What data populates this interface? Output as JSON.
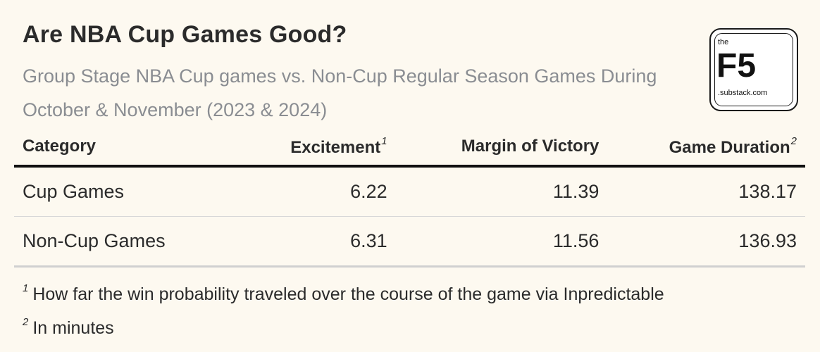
{
  "title": "Are NBA Cup Games Good?",
  "subtitle": "Group Stage NBA Cup games vs. Non-Cup Regular Season Games During October & November (2023 & 2024)",
  "logo": {
    "top": "the",
    "main": "F5",
    "bottom": ".substack.com"
  },
  "chart_data": {
    "type": "table",
    "columns": [
      {
        "label": "Category",
        "note": ""
      },
      {
        "label": "Excitement",
        "note": "1"
      },
      {
        "label": "Margin of Victory",
        "note": ""
      },
      {
        "label": "Game Duration",
        "note": "2"
      }
    ],
    "rows": [
      {
        "category": "Cup Games",
        "excitement": "6.22",
        "margin": "11.39",
        "duration": "138.17"
      },
      {
        "category": "Non-Cup Games",
        "excitement": "6.31",
        "margin": "11.56",
        "duration": "136.93"
      }
    ],
    "footnotes": [
      {
        "mark": "1",
        "text": "How far the win probability traveled over the course of the game via Inpredictable"
      },
      {
        "mark": "2",
        "text": "In minutes"
      }
    ]
  }
}
